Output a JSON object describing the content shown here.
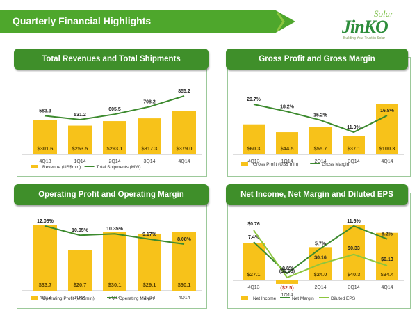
{
  "header": {
    "title": "Quarterly Financial Highlights"
  },
  "logo": {
    "word": "JinKO",
    "script": "Solar",
    "tagline": "Building Your Trust in Solar"
  },
  "colors": {
    "brand_green": "#4ea72c",
    "bar_gold": "#f7c21a",
    "line_green": "#3c8a2e",
    "line_light": "#8cc63f"
  },
  "chart_data": [
    {
      "type": "bar",
      "title": "Total Revenues and Total Shipments",
      "categories": [
        "4Q13",
        "1Q14",
        "2Q14",
        "3Q14",
        "4Q14"
      ],
      "series": [
        {
          "name": "Revenue (US$mln)",
          "kind": "bar",
          "values": [
            301.6,
            253.5,
            293.1,
            317.3,
            379.0
          ],
          "labels": [
            "$301.6",
            "$253.5",
            "$293.1",
            "$317.3",
            "$379.0"
          ]
        },
        {
          "name": "Total Shipments (MW)",
          "kind": "line",
          "values": [
            583.3,
            531.2,
            605.5,
            708.2,
            855.2
          ],
          "labels": [
            "583.3",
            "531.2",
            "605.5",
            "708.2",
            "855.2"
          ]
        }
      ]
    },
    {
      "type": "bar",
      "title": "Gross Profit and Gross Margin",
      "categories": [
        "4Q13",
        "1Q14",
        "2Q14",
        "3Q14",
        "4Q14"
      ],
      "series": [
        {
          "name": "Gross Profit (US$ mln)",
          "kind": "bar",
          "values": [
            60.3,
            44.5,
            55.7,
            37.1,
            100.3
          ],
          "labels": [
            "$60.3",
            "$44.5",
            "$55.7",
            "$37.1",
            "$100.3"
          ]
        },
        {
          "name": "Gross Margin",
          "kind": "line",
          "values": [
            20.7,
            18.2,
            15.2,
            11.0,
            16.8
          ],
          "labels": [
            "20.7%",
            "18.2%",
            "15.2%",
            "11.0%",
            "16.8%"
          ]
        }
      ]
    },
    {
      "type": "bar",
      "title": "Operating Profit and Operating Margin",
      "categories": [
        "4Q13",
        "1Q14",
        "2Q14",
        "3Q14",
        "4Q14"
      ],
      "series": [
        {
          "name": "Operating Profit (US$mln)",
          "kind": "bar",
          "values": [
            33.7,
            20.7,
            30.1,
            29.1,
            30.1
          ],
          "labels": [
            "$33.7",
            "$20.7",
            "$30.1",
            "$29.1",
            "$30.1"
          ]
        },
        {
          "name": "Operating Margin",
          "kind": "line",
          "values": [
            12.08,
            10.05,
            10.35,
            9.17,
            8.08
          ],
          "labels": [
            "12.08%",
            "10.05%",
            "10.35%",
            "9.17%",
            "8.08%"
          ]
        }
      ]
    },
    {
      "type": "bar",
      "title": "Net Income, Net Margin and Diluted EPS",
      "categories": [
        "4Q13",
        "1Q14",
        "2Q14",
        "3Q14",
        "4Q14"
      ],
      "series": [
        {
          "name": "Net Income",
          "kind": "bar",
          "values": [
            27.1,
            -2.5,
            24.0,
            40.3,
            34.4
          ],
          "labels": [
            "$27.1",
            "($2.5)",
            "$24.0",
            "$40.3",
            "$34.4"
          ]
        },
        {
          "name": "Net Margin",
          "kind": "line",
          "values": [
            7.4,
            -0.8,
            5.7,
            11.6,
            8.2
          ],
          "labels": [
            "7.4%",
            "-0.8%",
            "5.7%",
            "11.6%",
            "8.2%"
          ]
        },
        {
          "name": "Diluted EPS",
          "kind": "line",
          "values": [
            0.76,
            -0.08,
            0.16,
            0.33,
            0.13
          ],
          "labels": [
            "$0.76",
            "($0.08)",
            "$0.16",
            "$0.33",
            "$0.13"
          ]
        }
      ]
    }
  ]
}
